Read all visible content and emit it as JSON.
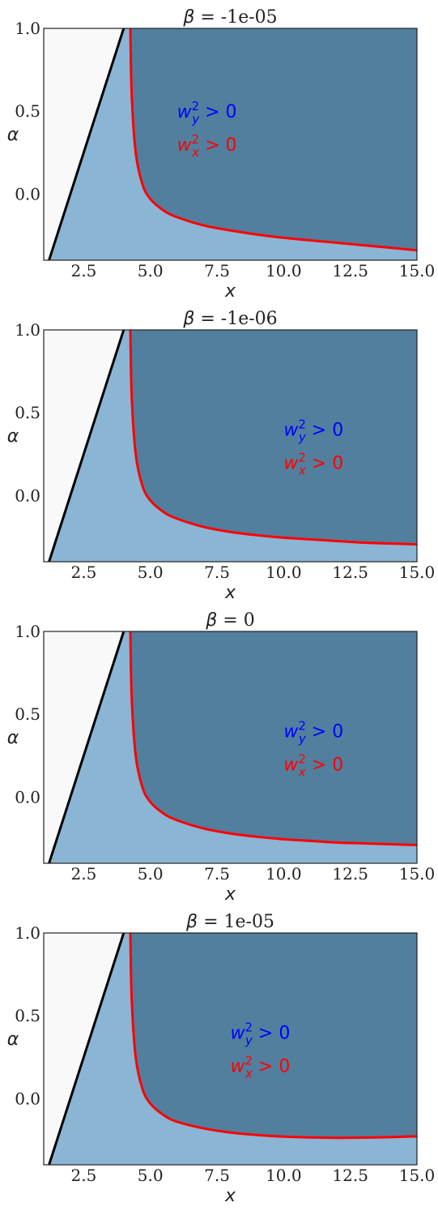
{
  "chart_data": [
    {
      "type": "area",
      "title_symbol": "β",
      "title_eq": " = ",
      "title_value": "-1e-05",
      "xlabel": "x",
      "ylabel": "α",
      "xlim": [
        1.0,
        15.0
      ],
      "ylim": [
        -0.4,
        1.0
      ],
      "xticks": [
        "2.5",
        "5.0",
        "7.5",
        "10.0",
        "12.5",
        "15.0"
      ],
      "xtick_values": [
        2.5,
        5.0,
        7.5,
        10.0,
        12.5,
        15.0
      ],
      "yticks": [
        "0.0",
        "0.5",
        "1.0"
      ],
      "ytick_values": [
        0.0,
        0.5,
        1.0
      ],
      "boundary_line": {
        "x": [
          1.2,
          4.0
        ],
        "y": [
          -0.4,
          1.0
        ],
        "color": "#000000"
      },
      "red_curve": {
        "x": [
          4.25,
          4.3,
          4.45,
          4.7,
          5.0,
          5.5,
          6.0,
          7.0,
          8.0,
          9.0,
          10.0,
          11.0,
          12.0,
          13.0,
          14.0,
          15.0
        ],
        "y": [
          1.0,
          0.6,
          0.25,
          0.06,
          -0.03,
          -0.1,
          -0.14,
          -0.19,
          -0.22,
          -0.245,
          -0.265,
          -0.28,
          -0.295,
          -0.31,
          -0.325,
          -0.34
        ],
        "color": "#ff0000"
      },
      "annotations": [
        {
          "base": "w",
          "sub": "y",
          "sup": "2",
          "rest": " > 0",
          "x": 6.0,
          "y": 0.5,
          "color": "#0000ff"
        },
        {
          "base": "w",
          "sub": "x",
          "sup": "2",
          "rest": " > 0",
          "x": 6.0,
          "y": 0.3,
          "color": "#ff0000"
        }
      ],
      "colors": {
        "white_region": "#f9f9f9",
        "light_region": "#8bb5d4",
        "dark_region": "#527f9e"
      }
    },
    {
      "type": "area",
      "title_symbol": "β",
      "title_eq": " = ",
      "title_value": "-1e-06",
      "xlabel": "x",
      "ylabel": "α",
      "xlim": [
        1.0,
        15.0
      ],
      "ylim": [
        -0.4,
        1.0
      ],
      "xticks": [
        "2.5",
        "5.0",
        "7.5",
        "10.0",
        "12.5",
        "15.0"
      ],
      "xtick_values": [
        2.5,
        5.0,
        7.5,
        10.0,
        12.5,
        15.0
      ],
      "yticks": [
        "0.0",
        "0.5",
        "1.0"
      ],
      "ytick_values": [
        0.0,
        0.5,
        1.0
      ],
      "boundary_line": {
        "x": [
          1.2,
          4.0
        ],
        "y": [
          -0.4,
          1.0
        ],
        "color": "#000000"
      },
      "red_curve": {
        "x": [
          4.25,
          4.3,
          4.45,
          4.7,
          5.0,
          5.5,
          6.0,
          7.0,
          8.0,
          9.0,
          10.0,
          11.0,
          12.0,
          13.0,
          14.0,
          15.0
        ],
        "y": [
          1.0,
          0.6,
          0.25,
          0.06,
          -0.03,
          -0.1,
          -0.14,
          -0.19,
          -0.22,
          -0.24,
          -0.255,
          -0.265,
          -0.275,
          -0.285,
          -0.29,
          -0.295
        ],
        "color": "#ff0000"
      },
      "annotations": [
        {
          "base": "w",
          "sub": "y",
          "sup": "2",
          "rest": " > 0",
          "x": 10.0,
          "y": 0.4,
          "color": "#0000ff"
        },
        {
          "base": "w",
          "sub": "x",
          "sup": "2",
          "rest": " > 0",
          "x": 10.0,
          "y": 0.2,
          "color": "#ff0000"
        }
      ],
      "colors": {
        "white_region": "#f9f9f9",
        "light_region": "#8bb5d4",
        "dark_region": "#527f9e"
      }
    },
    {
      "type": "area",
      "title_symbol": "β",
      "title_eq": " = ",
      "title_value": "0",
      "xlabel": "x",
      "ylabel": "α",
      "xlim": [
        1.0,
        15.0
      ],
      "ylim": [
        -0.4,
        1.0
      ],
      "xticks": [
        "2.5",
        "5.0",
        "7.5",
        "10.0",
        "12.5",
        "15.0"
      ],
      "xtick_values": [
        2.5,
        5.0,
        7.5,
        10.0,
        12.5,
        15.0
      ],
      "yticks": [
        "0.0",
        "0.5",
        "1.0"
      ],
      "ytick_values": [
        0.0,
        0.5,
        1.0
      ],
      "boundary_line": {
        "x": [
          1.2,
          4.0
        ],
        "y": [
          -0.4,
          1.0
        ],
        "color": "#000000"
      },
      "red_curve": {
        "x": [
          4.25,
          4.3,
          4.45,
          4.7,
          5.0,
          5.5,
          6.0,
          7.0,
          8.0,
          9.0,
          10.0,
          11.0,
          12.0,
          13.0,
          14.0,
          15.0
        ],
        "y": [
          1.0,
          0.6,
          0.25,
          0.06,
          -0.03,
          -0.1,
          -0.14,
          -0.19,
          -0.22,
          -0.24,
          -0.255,
          -0.265,
          -0.275,
          -0.28,
          -0.285,
          -0.29
        ],
        "color": "#ff0000"
      },
      "annotations": [
        {
          "base": "w",
          "sub": "y",
          "sup": "2",
          "rest": " > 0",
          "x": 10.0,
          "y": 0.4,
          "color": "#0000ff"
        },
        {
          "base": "w",
          "sub": "x",
          "sup": "2",
          "rest": " > 0",
          "x": 10.0,
          "y": 0.2,
          "color": "#ff0000"
        }
      ],
      "colors": {
        "white_region": "#f9f9f9",
        "light_region": "#8bb5d4",
        "dark_region": "#527f9e"
      }
    },
    {
      "type": "area",
      "title_symbol": "β",
      "title_eq": " = ",
      "title_value": "1e-05",
      "xlabel": "x",
      "ylabel": "α",
      "xlim": [
        1.0,
        15.0
      ],
      "ylim": [
        -0.4,
        1.0
      ],
      "xticks": [
        "2.5",
        "5.0",
        "7.5",
        "10.0",
        "12.5",
        "15.0"
      ],
      "xtick_values": [
        2.5,
        5.0,
        7.5,
        10.0,
        12.5,
        15.0
      ],
      "yticks": [
        "0.0",
        "0.5",
        "1.0"
      ],
      "ytick_values": [
        0.0,
        0.5,
        1.0
      ],
      "boundary_line": {
        "x": [
          1.2,
          4.0
        ],
        "y": [
          -0.4,
          1.0
        ],
        "color": "#000000"
      },
      "red_curve": {
        "x": [
          4.25,
          4.3,
          4.45,
          4.7,
          5.0,
          5.5,
          6.0,
          7.0,
          8.0,
          9.0,
          10.0,
          11.0,
          12.0,
          13.0,
          14.0,
          15.0
        ],
        "y": [
          1.0,
          0.6,
          0.25,
          0.06,
          -0.03,
          -0.1,
          -0.14,
          -0.18,
          -0.205,
          -0.22,
          -0.23,
          -0.235,
          -0.237,
          -0.236,
          -0.233,
          -0.228
        ],
        "color": "#ff0000"
      },
      "annotations": [
        {
          "base": "w",
          "sub": "y",
          "sup": "2",
          "rest": " > 0",
          "x": 8.0,
          "y": 0.4,
          "color": "#0000ff"
        },
        {
          "base": "w",
          "sub": "x",
          "sup": "2",
          "rest": " > 0",
          "x": 8.0,
          "y": 0.2,
          "color": "#ff0000"
        }
      ],
      "colors": {
        "white_region": "#f9f9f9",
        "light_region": "#8bb5d4",
        "dark_region": "#527f9e"
      }
    }
  ]
}
